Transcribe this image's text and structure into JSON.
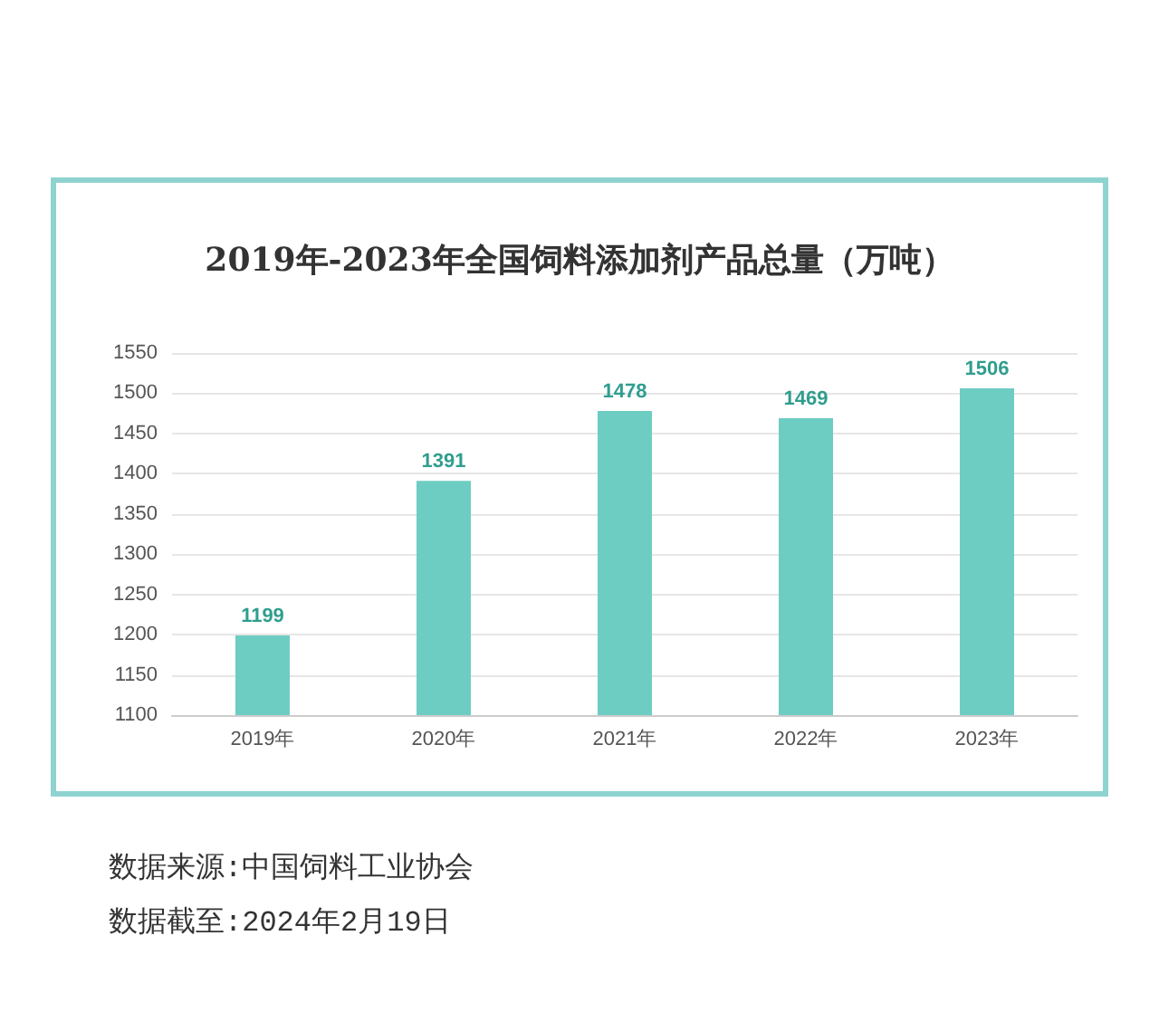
{
  "chart_data": {
    "type": "bar",
    "title": "2019年-2023年全国饲料添加剂产品总量（万吨）",
    "categories": [
      "2019年",
      "2020年",
      "2021年",
      "2022年",
      "2023年"
    ],
    "values": [
      1199,
      1391,
      1478,
      1469,
      1506
    ],
    "color": "#6dcdc3",
    "ylim": [
      1100,
      1550
    ],
    "yticks": [
      1100,
      1150,
      1200,
      1250,
      1300,
      1350,
      1400,
      1450,
      1500,
      1550
    ],
    "grid": "y",
    "data_labels": true,
    "annotations": [
      "数据来源:中国饲料工业协会",
      "数据截至:2024年2月19日"
    ]
  }
}
